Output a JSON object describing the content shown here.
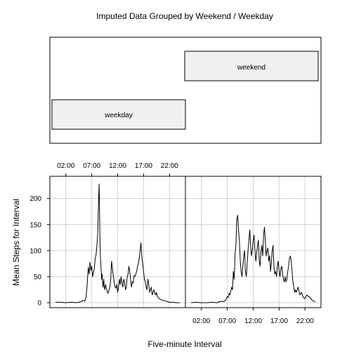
{
  "chart_data": {
    "type": "line",
    "title": "Imputed Data Grouped by Weekend / Weekday",
    "xlabel": "Five-minute Interval",
    "ylabel": "Mean Steps for Interval",
    "xlim": [
      0,
      1440
    ],
    "ylim": [
      0,
      240
    ],
    "x_ticks": [
      {
        "value": 120,
        "label": "02:00"
      },
      {
        "value": 420,
        "label": "07:00"
      },
      {
        "value": 720,
        "label": "12:00"
      },
      {
        "value": 1020,
        "label": "17:00"
      },
      {
        "value": 1320,
        "label": "22:00"
      }
    ],
    "y_ticks": [
      {
        "value": 0,
        "label": "0"
      },
      {
        "value": 50,
        "label": "50"
      },
      {
        "value": 100,
        "label": "100"
      },
      {
        "value": 150,
        "label": "150"
      },
      {
        "value": 200,
        "label": "200"
      }
    ],
    "grid": true,
    "colors": {
      "line": "#000000",
      "grid": "#d0d0d0",
      "strip": "#f0f0f0"
    },
    "panels": [
      {
        "name": "weekday",
        "x": [
          0,
          60,
          120,
          180,
          240,
          300,
          320,
          340,
          355,
          365,
          370,
          380,
          390,
          400,
          410,
          420,
          430,
          440,
          450,
          460,
          470,
          480,
          490,
          500,
          505,
          510,
          515,
          520,
          525,
          530,
          535,
          540,
          545,
          550,
          555,
          560,
          565,
          570,
          580,
          590,
          600,
          610,
          620,
          630,
          640,
          650,
          660,
          670,
          680,
          690,
          700,
          710,
          720,
          730,
          740,
          750,
          760,
          770,
          780,
          790,
          800,
          810,
          820,
          830,
          840,
          850,
          860,
          870,
          880,
          890,
          900,
          910,
          920,
          930,
          940,
          950,
          960,
          970,
          980,
          990,
          1000,
          1010,
          1020,
          1030,
          1040,
          1050,
          1060,
          1070,
          1080,
          1090,
          1100,
          1110,
          1120,
          1130,
          1140,
          1150,
          1160,
          1170,
          1180,
          1190,
          1200,
          1220,
          1240,
          1260,
          1280,
          1300,
          1320,
          1360,
          1400,
          1440
        ],
        "y": [
          1,
          1,
          0,
          1,
          0,
          2,
          5,
          3,
          12,
          30,
          45,
          68,
          55,
          78,
          62,
          70,
          50,
          58,
          65,
          85,
          92,
          110,
          135,
          205,
          228,
          180,
          120,
          90,
          75,
          60,
          45,
          55,
          40,
          30,
          38,
          45,
          30,
          25,
          35,
          28,
          20,
          18,
          25,
          30,
          45,
          80,
          65,
          50,
          40,
          30,
          28,
          35,
          20,
          30,
          45,
          35,
          50,
          38,
          30,
          45,
          40,
          25,
          30,
          48,
          55,
          70,
          60,
          45,
          30,
          40,
          38,
          52,
          50,
          55,
          60,
          70,
          75,
          85,
          100,
          115,
          90,
          75,
          60,
          45,
          40,
          30,
          25,
          45,
          35,
          20,
          25,
          30,
          15,
          20,
          25,
          18,
          15,
          20,
          12,
          10,
          8,
          6,
          5,
          4,
          3,
          2,
          1,
          1,
          0,
          0
        ]
      },
      {
        "name": "weekend",
        "x": [
          0,
          60,
          120,
          180,
          240,
          300,
          330,
          360,
          380,
          400,
          410,
          420,
          430,
          440,
          450,
          460,
          470,
          480,
          490,
          500,
          510,
          520,
          530,
          540,
          550,
          560,
          570,
          580,
          590,
          600,
          610,
          620,
          630,
          640,
          650,
          660,
          670,
          680,
          690,
          700,
          710,
          720,
          730,
          740,
          750,
          760,
          770,
          780,
          790,
          800,
          810,
          820,
          830,
          840,
          850,
          860,
          870,
          880,
          890,
          900,
          910,
          920,
          930,
          940,
          950,
          960,
          970,
          980,
          990,
          1000,
          1010,
          1020,
          1030,
          1040,
          1050,
          1060,
          1070,
          1080,
          1090,
          1100,
          1110,
          1120,
          1130,
          1140,
          1150,
          1160,
          1170,
          1180,
          1190,
          1200,
          1210,
          1220,
          1240,
          1260,
          1280,
          1300,
          1320,
          1340,
          1360,
          1380,
          1400,
          1420,
          1440
        ],
        "y": [
          0,
          1,
          0,
          0,
          1,
          0,
          2,
          3,
          2,
          5,
          8,
          12,
          10,
          18,
          15,
          22,
          30,
          25,
          60,
          45,
          95,
          110,
          160,
          168,
          140,
          120,
          80,
          60,
          50,
          70,
          90,
          100,
          60,
          50,
          75,
          100,
          120,
          140,
          110,
          90,
          100,
          120,
          130,
          100,
          80,
          95,
          110,
          120,
          80,
          70,
          100,
          110,
          90,
          130,
          145,
          120,
          90,
          100,
          105,
          80,
          90,
          60,
          75,
          100,
          110,
          70,
          55,
          60,
          50,
          70,
          80,
          60,
          50,
          65,
          70,
          55,
          45,
          40,
          50,
          40,
          45,
          60,
          70,
          85,
          90,
          80,
          60,
          40,
          30,
          20,
          25,
          20,
          30,
          15,
          20,
          10,
          8,
          15,
          12,
          10,
          5,
          3,
          2
        ]
      }
    ]
  }
}
